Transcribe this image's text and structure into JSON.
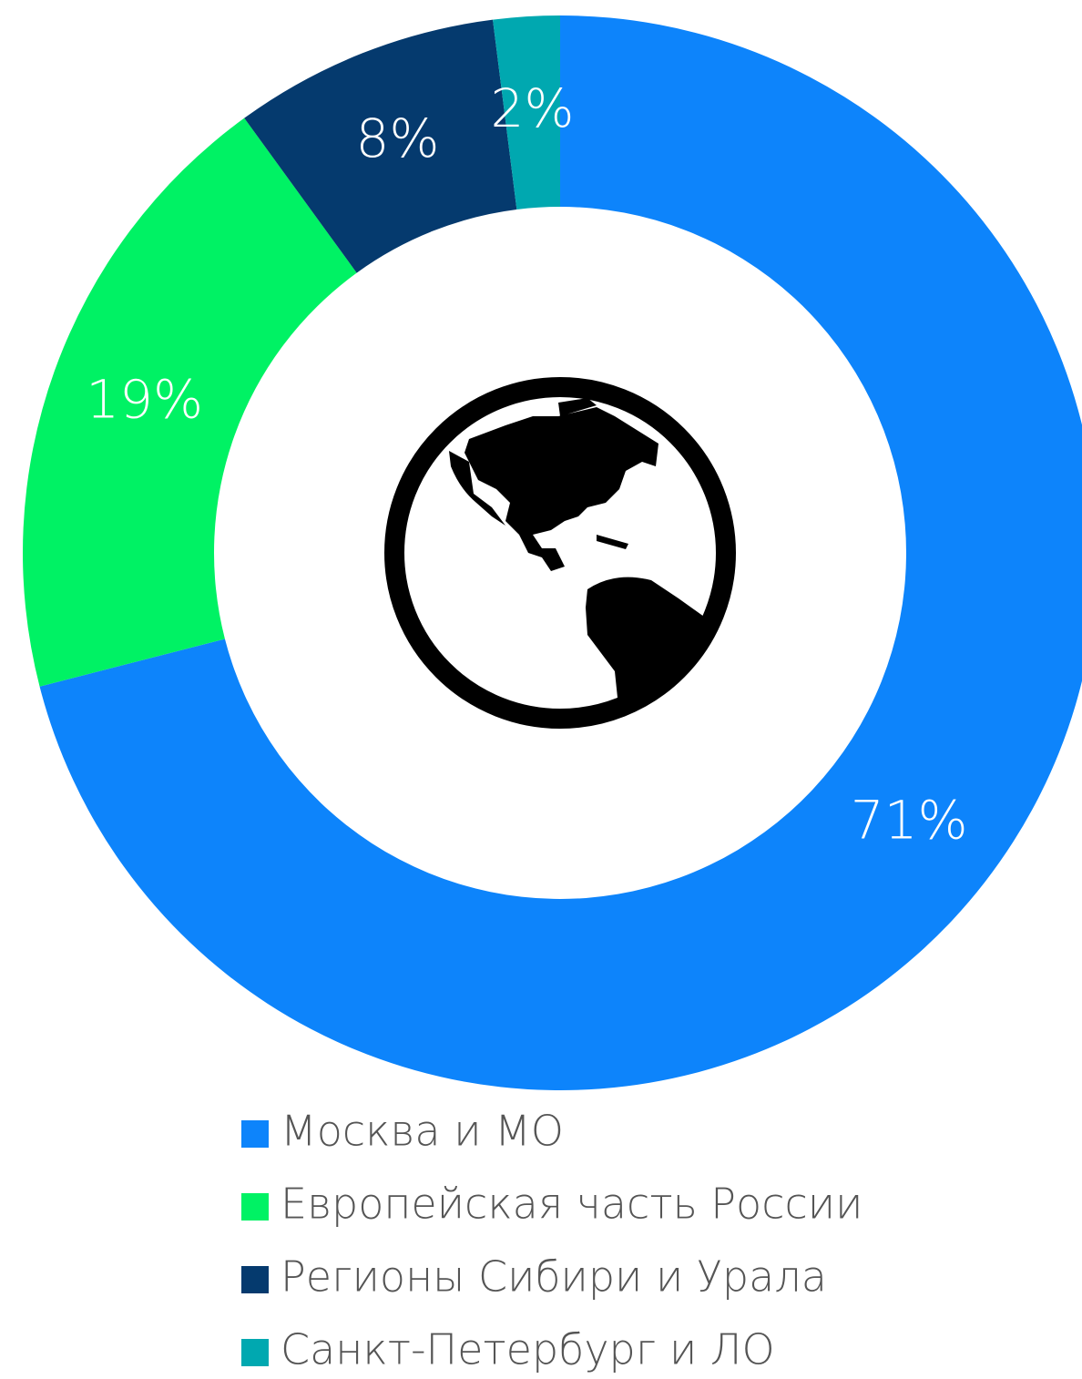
{
  "chart_data": {
    "type": "donut",
    "categories": [
      "Москва и МО",
      "Европейская часть России",
      "Регионы Сибири и Урала",
      "Санкт-Петербург и ЛО"
    ],
    "values": [
      71,
      19,
      8,
      2
    ],
    "value_labels": [
      "71%",
      "19%",
      "8%",
      "2%"
    ],
    "colors": [
      "#0d84fb",
      "#00f264",
      "#053a6e",
      "#00a8b0"
    ]
  }
}
